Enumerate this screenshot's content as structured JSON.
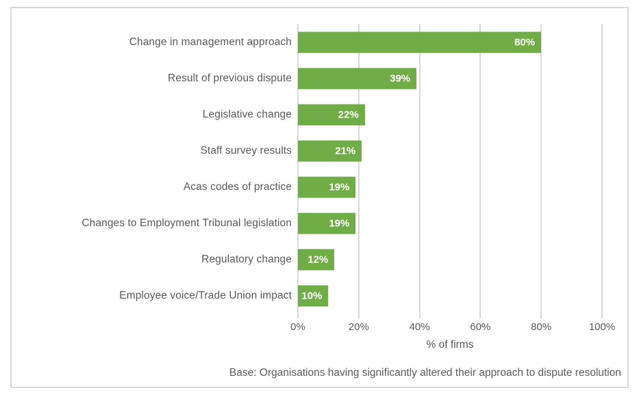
{
  "chart_data": {
    "type": "bar",
    "orientation": "horizontal",
    "categories": [
      "Change in management approach",
      "Result of previous dispute",
      "Legislative change",
      "Staff survey results",
      "Acas codes of practice",
      "Changes to Employment Tribunal legislation",
      "Regulatory change",
      "Employee voice/Trade Union impact"
    ],
    "values": [
      80,
      39,
      22,
      21,
      19,
      19,
      12,
      10
    ],
    "value_labels": [
      "80%",
      "39%",
      "22%",
      "21%",
      "19%",
      "19%",
      "12%",
      "10%"
    ],
    "title": "",
    "xlabel": "% of firms",
    "ylabel": "",
    "xlim": [
      0,
      100
    ],
    "x_ticks": [
      "0%",
      "20%",
      "40%",
      "60%",
      "80%",
      "100%"
    ],
    "x_tick_values": [
      0,
      20,
      40,
      60,
      80,
      100
    ],
    "grid": "vertical",
    "legend": "none",
    "note": "Base: Organisations having significantly altered their approach to dispute resolution",
    "colors": {
      "bar": "#70AD47",
      "bar_value_text": "#FFFFFF",
      "gridline": "#D9D9D9",
      "frame_border": "#D9D9D9",
      "text": "#595959",
      "background": "#FFFFFF"
    }
  }
}
